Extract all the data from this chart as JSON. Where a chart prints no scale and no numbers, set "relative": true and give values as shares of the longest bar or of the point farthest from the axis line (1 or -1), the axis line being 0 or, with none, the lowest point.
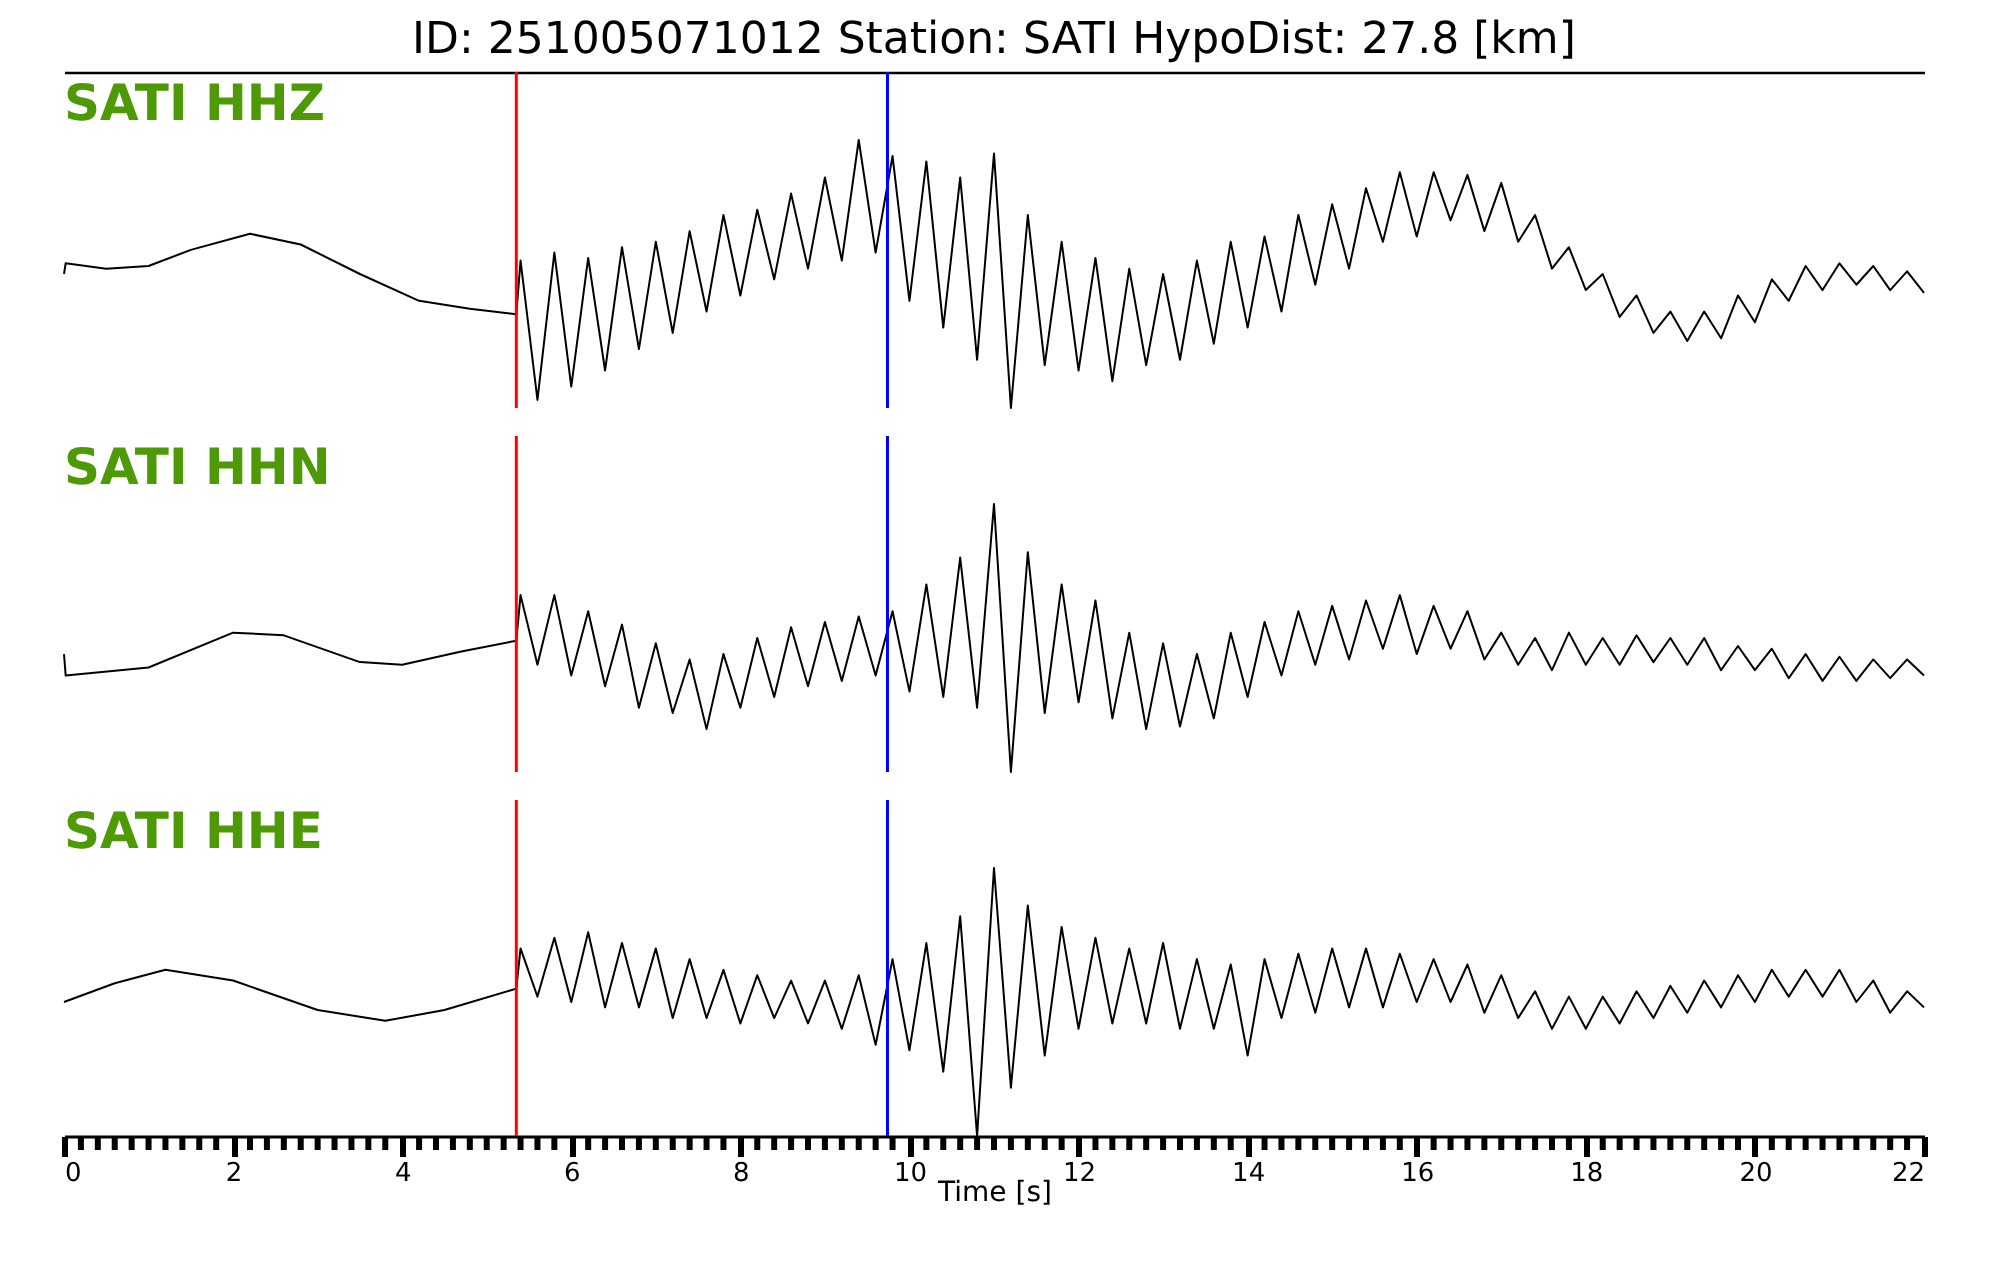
{
  "chart_data": [
    {
      "type": "line",
      "title": "ID: 251005071012   Station: SATI   HypoDist:    27.8 [km]",
      "relative": true,
      "xlim": [
        0,
        22
      ],
      "tick_labels": false,
      "x": [
        0,
        0.02,
        0.5,
        1.0,
        1.5,
        2.2,
        2.8,
        3.5,
        4.2,
        4.8,
        5.35,
        5.4,
        5.6,
        5.8,
        6.0,
        6.2,
        6.4,
        6.6,
        6.8,
        7.0,
        7.2,
        7.4,
        7.6,
        7.8,
        8.0,
        8.2,
        8.4,
        8.6,
        8.8,
        9.0,
        9.2,
        9.4,
        9.6,
        9.8,
        10.0,
        10.2,
        10.4,
        10.6,
        10.8,
        11.0,
        11.2,
        11.4,
        11.6,
        11.8,
        12.0,
        12.2,
        12.4,
        12.6,
        12.8,
        13.0,
        13.2,
        13.4,
        13.6,
        13.8,
        14.0,
        14.2,
        14.4,
        14.6,
        14.8,
        15.0,
        15.2,
        15.4,
        15.6,
        15.8,
        16.0,
        16.2,
        16.4,
        16.6,
        16.8,
        17.0,
        17.2,
        17.4,
        17.6,
        17.8,
        18.0,
        18.2,
        18.4,
        18.6,
        18.8,
        19.0,
        19.2,
        19.4,
        19.6,
        19.8,
        20.0,
        20.2,
        20.4,
        20.6,
        20.8,
        21.0,
        21.2,
        21.4,
        21.6,
        21.8,
        22.0
      ],
      "series": [
        {
          "name": "SATI HHZ",
          "color": "#000000",
          "values": [
            0.5,
            0.54,
            0.52,
            0.53,
            0.59,
            0.65,
            0.61,
            0.5,
            0.4,
            0.37,
            0.35,
            0.55,
            0.03,
            0.58,
            0.08,
            0.56,
            0.14,
            0.6,
            0.22,
            0.62,
            0.28,
            0.66,
            0.36,
            0.72,
            0.42,
            0.74,
            0.48,
            0.8,
            0.52,
            0.86,
            0.55,
            1.0,
            0.58,
            0.94,
            0.4,
            0.92,
            0.3,
            0.86,
            0.18,
            0.95,
            0.0,
            0.72,
            0.16,
            0.62,
            0.14,
            0.56,
            0.1,
            0.52,
            0.16,
            0.5,
            0.18,
            0.55,
            0.24,
            0.62,
            0.3,
            0.64,
            0.36,
            0.72,
            0.46,
            0.76,
            0.52,
            0.82,
            0.62,
            0.88,
            0.64,
            0.88,
            0.7,
            0.87,
            0.66,
            0.84,
            0.62,
            0.72,
            0.52,
            0.6,
            0.44,
            0.5,
            0.34,
            0.42,
            0.28,
            0.36,
            0.25,
            0.36,
            0.26,
            0.42,
            0.32,
            0.48,
            0.4,
            0.53,
            0.44,
            0.54,
            0.46,
            0.53,
            0.44,
            0.51,
            0.43
          ]
        }
      ],
      "ref_lines": [
        {
          "axis": "x",
          "value": 5.35,
          "color": "#ff0000"
        },
        {
          "axis": "x",
          "value": 9.74,
          "color": "#0000ff"
        }
      ]
    },
    {
      "type": "line",
      "relative": true,
      "xlim": [
        0,
        22
      ],
      "tick_labels": false,
      "x": [
        0,
        0.02,
        1.0,
        2.0,
        2.6,
        3.5,
        4.0,
        4.7,
        5.35,
        5.4,
        5.6,
        5.8,
        6.0,
        6.2,
        6.4,
        6.6,
        6.8,
        7.0,
        7.2,
        7.4,
        7.6,
        7.8,
        8.0,
        8.2,
        8.4,
        8.6,
        8.8,
        9.0,
        9.2,
        9.4,
        9.6,
        9.8,
        10.0,
        10.2,
        10.4,
        10.6,
        10.8,
        11.0,
        11.2,
        11.4,
        11.6,
        11.8,
        12.0,
        12.2,
        12.4,
        12.6,
        12.8,
        13.0,
        13.2,
        13.4,
        13.6,
        13.8,
        14.0,
        14.2,
        14.4,
        14.6,
        14.8,
        15.0,
        15.2,
        15.4,
        15.6,
        15.8,
        16.0,
        16.2,
        16.4,
        16.6,
        16.8,
        17.0,
        17.2,
        17.4,
        17.6,
        17.8,
        18.0,
        18.2,
        18.4,
        18.6,
        18.8,
        19.0,
        19.2,
        19.4,
        19.6,
        19.8,
        20.0,
        20.2,
        20.4,
        20.6,
        20.8,
        21.0,
        21.2,
        21.4,
        21.6,
        21.8,
        22.0
      ],
      "series": [
        {
          "name": "SATI HHN",
          "color": "#000000",
          "values": [
            0.44,
            0.36,
            0.39,
            0.52,
            0.51,
            0.41,
            0.4,
            0.45,
            0.49,
            0.66,
            0.4,
            0.66,
            0.36,
            0.6,
            0.32,
            0.55,
            0.24,
            0.48,
            0.22,
            0.42,
            0.16,
            0.44,
            0.24,
            0.5,
            0.28,
            0.54,
            0.32,
            0.56,
            0.34,
            0.58,
            0.36,
            0.6,
            0.3,
            0.7,
            0.28,
            0.8,
            0.24,
            1.0,
            0.0,
            0.82,
            0.22,
            0.7,
            0.26,
            0.64,
            0.2,
            0.52,
            0.16,
            0.48,
            0.17,
            0.44,
            0.2,
            0.52,
            0.28,
            0.56,
            0.36,
            0.6,
            0.4,
            0.62,
            0.42,
            0.64,
            0.46,
            0.66,
            0.44,
            0.62,
            0.46,
            0.6,
            0.42,
            0.52,
            0.4,
            0.5,
            0.38,
            0.52,
            0.4,
            0.5,
            0.4,
            0.51,
            0.41,
            0.5,
            0.4,
            0.5,
            0.38,
            0.47,
            0.38,
            0.46,
            0.35,
            0.44,
            0.34,
            0.43,
            0.34,
            0.42,
            0.35,
            0.42,
            0.36
          ]
        }
      ],
      "ref_lines": [
        {
          "axis": "x",
          "value": 5.35,
          "color": "#ff0000"
        },
        {
          "axis": "x",
          "value": 9.74,
          "color": "#0000ff"
        }
      ]
    },
    {
      "type": "line",
      "relative": true,
      "xlim": [
        0,
        22
      ],
      "tick_labels": "x",
      "xlabel": "Time [s]",
      "xticks": [
        0,
        {
          "value": 0.2,
          "label": null
        },
        {
          "value": 0.4,
          "label": null
        },
        {
          "value": 0.6,
          "label": null
        },
        {
          "value": 0.8,
          "label": null
        },
        {
          "value": 1.0,
          "label": null
        },
        {
          "value": 1.2,
          "label": null
        },
        {
          "value": 1.4,
          "label": null
        },
        {
          "value": 1.6,
          "label": null
        },
        {
          "value": 1.8,
          "label": null
        },
        2,
        {
          "value": 2.2,
          "label": null
        },
        {
          "value": 2.4,
          "label": null
        },
        {
          "value": 2.6,
          "label": null
        },
        {
          "value": 2.8,
          "label": null
        },
        {
          "value": 3.0,
          "label": null
        },
        {
          "value": 3.2,
          "label": null
        },
        {
          "value": 3.4,
          "label": null
        },
        {
          "value": 3.6,
          "label": null
        },
        {
          "value": 3.8,
          "label": null
        },
        4,
        {
          "value": 4.2,
          "label": null
        },
        {
          "value": 4.4,
          "label": null
        },
        {
          "value": 4.6,
          "label": null
        },
        {
          "value": 4.8,
          "label": null
        },
        {
          "value": 5.0,
          "label": null
        },
        {
          "value": 5.2,
          "label": null
        },
        {
          "value": 5.4,
          "label": null
        },
        {
          "value": 5.6,
          "label": null
        },
        {
          "value": 5.8,
          "label": null
        },
        6,
        {
          "value": 6.2,
          "label": null
        },
        {
          "value": 6.4,
          "label": null
        },
        {
          "value": 6.6,
          "label": null
        },
        {
          "value": 6.8,
          "label": null
        },
        {
          "value": 7.0,
          "label": null
        },
        {
          "value": 7.2,
          "label": null
        },
        {
          "value": 7.4,
          "label": null
        },
        {
          "value": 7.6,
          "label": null
        },
        {
          "value": 7.8,
          "label": null
        },
        8,
        {
          "value": 8.2,
          "label": null
        },
        {
          "value": 8.4,
          "label": null
        },
        {
          "value": 8.6,
          "label": null
        },
        {
          "value": 8.8,
          "label": null
        },
        {
          "value": 9.0,
          "label": null
        },
        {
          "value": 9.2,
          "label": null
        },
        {
          "value": 9.4,
          "label": null
        },
        {
          "value": 9.6,
          "label": null
        },
        {
          "value": 9.8,
          "label": null
        },
        10,
        {
          "value": 10.2,
          "label": null
        },
        {
          "value": 10.4,
          "label": null
        },
        {
          "value": 10.6,
          "label": null
        },
        {
          "value": 10.8,
          "label": null
        },
        {
          "value": 11.0,
          "label": null
        },
        {
          "value": 11.2,
          "label": null
        },
        {
          "value": 11.4,
          "label": null
        },
        {
          "value": 11.6,
          "label": null
        },
        {
          "value": 11.8,
          "label": null
        },
        12,
        {
          "value": 12.2,
          "label": null
        },
        {
          "value": 12.4,
          "label": null
        },
        {
          "value": 12.6,
          "label": null
        },
        {
          "value": 12.8,
          "label": null
        },
        {
          "value": 13.0,
          "label": null
        },
        {
          "value": 13.2,
          "label": null
        },
        {
          "value": 13.4,
          "label": null
        },
        {
          "value": 13.6,
          "label": null
        },
        {
          "value": 13.8,
          "label": null
        },
        14,
        {
          "value": 14.2,
          "label": null
        },
        {
          "value": 14.4,
          "label": null
        },
        {
          "value": 14.6,
          "label": null
        },
        {
          "value": 14.8,
          "label": null
        },
        {
          "value": 15.0,
          "label": null
        },
        {
          "value": 15.2,
          "label": null
        },
        {
          "value": 15.4,
          "label": null
        },
        {
          "value": 15.6,
          "label": null
        },
        {
          "value": 15.8,
          "label": null
        },
        16,
        {
          "value": 16.2,
          "label": null
        },
        {
          "value": 16.4,
          "label": null
        },
        {
          "value": 16.6,
          "label": null
        },
        {
          "value": 16.8,
          "label": null
        },
        {
          "value": 17.0,
          "label": null
        },
        {
          "value": 17.2,
          "label": null
        },
        {
          "value": 17.4,
          "label": null
        },
        {
          "value": 17.6,
          "label": null
        },
        {
          "value": 17.8,
          "label": null
        },
        18,
        {
          "value": 18.2,
          "label": null
        },
        {
          "value": 18.4,
          "label": null
        },
        {
          "value": 18.6,
          "label": null
        },
        {
          "value": 18.8,
          "label": null
        },
        {
          "value": 19.0,
          "label": null
        },
        {
          "value": 19.2,
          "label": null
        },
        {
          "value": 19.4,
          "label": null
        },
        {
          "value": 19.6,
          "label": null
        },
        {
          "value": 19.8,
          "label": null
        },
        20,
        {
          "value": 20.2,
          "label": null
        },
        {
          "value": 20.4,
          "label": null
        },
        {
          "value": 20.6,
          "label": null
        },
        {
          "value": 20.8,
          "label": null
        },
        {
          "value": 21.0,
          "label": null
        },
        {
          "value": 21.2,
          "label": null
        },
        {
          "value": 21.4,
          "label": null
        },
        {
          "value": 21.6,
          "label": null
        },
        {
          "value": 21.8,
          "label": null
        },
        22
      ],
      "x": [
        0,
        0.6,
        1.2,
        2.0,
        3.0,
        3.8,
        4.5,
        5.35,
        5.4,
        5.6,
        5.8,
        6.0,
        6.2,
        6.4,
        6.6,
        6.8,
        7.0,
        7.2,
        7.4,
        7.6,
        7.8,
        8.0,
        8.2,
        8.4,
        8.6,
        8.8,
        9.0,
        9.2,
        9.4,
        9.6,
        9.8,
        10.0,
        10.2,
        10.4,
        10.6,
        10.8,
        11.0,
        11.2,
        11.4,
        11.6,
        11.8,
        12.0,
        12.2,
        12.4,
        12.6,
        12.8,
        13.0,
        13.2,
        13.4,
        13.6,
        13.8,
        14.0,
        14.2,
        14.4,
        14.6,
        14.8,
        15.0,
        15.2,
        15.4,
        15.6,
        15.8,
        16.0,
        16.2,
        16.4,
        16.6,
        16.8,
        17.0,
        17.2,
        17.4,
        17.6,
        17.8,
        18.0,
        18.2,
        18.4,
        18.6,
        18.8,
        19.0,
        19.2,
        19.4,
        19.6,
        19.8,
        20.0,
        20.2,
        20.4,
        20.6,
        20.8,
        21.0,
        21.2,
        21.4,
        21.6,
        21.8,
        22.0
      ],
      "series": [
        {
          "name": "SATI HHE",
          "color": "#000000",
          "values": [
            0.5,
            0.57,
            0.62,
            0.58,
            0.47,
            0.43,
            0.47,
            0.55,
            0.7,
            0.52,
            0.74,
            0.5,
            0.76,
            0.48,
            0.72,
            0.48,
            0.7,
            0.44,
            0.66,
            0.44,
            0.62,
            0.42,
            0.6,
            0.44,
            0.58,
            0.42,
            0.58,
            0.4,
            0.6,
            0.34,
            0.66,
            0.32,
            0.72,
            0.24,
            0.82,
            0.0,
            1.0,
            0.18,
            0.86,
            0.3,
            0.78,
            0.4,
            0.74,
            0.42,
            0.7,
            0.42,
            0.72,
            0.4,
            0.66,
            0.4,
            0.64,
            0.3,
            0.66,
            0.44,
            0.68,
            0.46,
            0.7,
            0.48,
            0.7,
            0.48,
            0.68,
            0.5,
            0.66,
            0.5,
            0.64,
            0.46,
            0.6,
            0.44,
            0.54,
            0.4,
            0.52,
            0.4,
            0.52,
            0.42,
            0.54,
            0.44,
            0.56,
            0.46,
            0.58,
            0.48,
            0.6,
            0.5,
            0.62,
            0.52,
            0.62,
            0.52,
            0.62,
            0.5,
            0.58,
            0.46,
            0.54,
            0.48
          ]
        }
      ],
      "ref_lines": [
        {
          "axis": "x",
          "value": 5.35,
          "color": "#ff0000"
        },
        {
          "axis": "x",
          "value": 9.74,
          "color": "#0000ff"
        }
      ]
    }
  ]
}
